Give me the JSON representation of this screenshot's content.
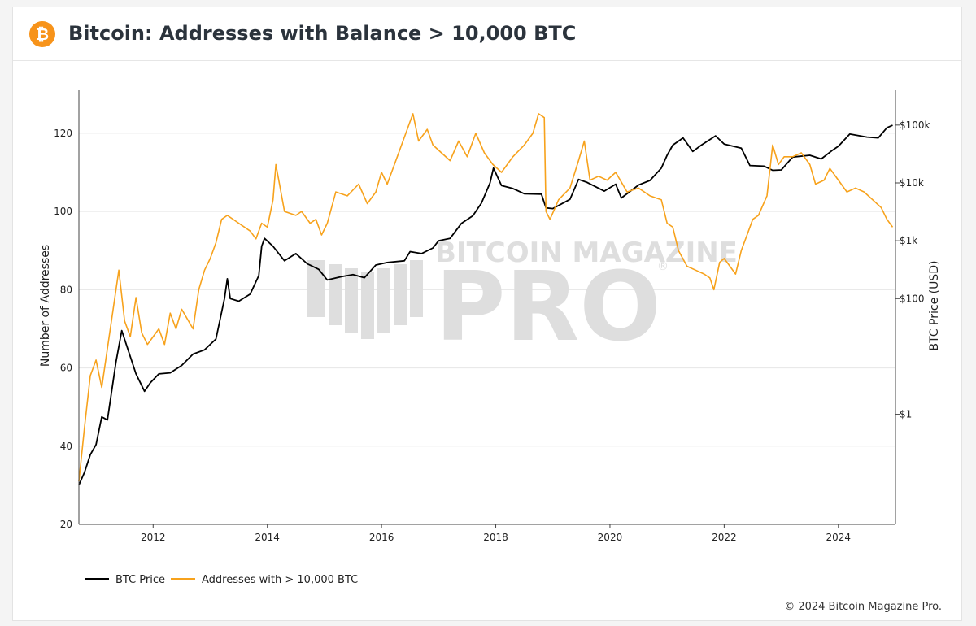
{
  "header": {
    "logo_glyph": "₿",
    "title": "Bitcoin: Addresses with Balance > 10,000 BTC"
  },
  "watermark": {
    "line1": "BITCOIN MAGAZINE",
    "line2": "PRO",
    "registered": "®"
  },
  "footer": {
    "copyright": "© 2024 Bitcoin Magazine Pro."
  },
  "colors": {
    "price": "#000000",
    "addresses": "#f7a21c",
    "brand": "#f7931a",
    "grid": "#e6e6e6"
  },
  "chart_data": {
    "type": "line",
    "title": "Bitcoin: Addresses with Balance > 10,000 BTC",
    "xlabel": "",
    "ylabel_left": "Number of Addresses",
    "ylabel_right": "BTC Price (USD)",
    "x_range": [
      2010.7,
      2025.0
    ],
    "y_left_range": [
      20,
      131
    ],
    "y_right_scale": "log",
    "y_right_range_usd": [
      0.0125,
      400000
    ],
    "x_ticks": [
      "2012",
      "2014",
      "2016",
      "2018",
      "2020",
      "2022",
      "2024"
    ],
    "y_left_ticks": [
      20,
      40,
      60,
      80,
      100,
      120
    ],
    "y_right_ticks": [
      {
        "label": "$1",
        "value": 1
      },
      {
        "label": "$100",
        "value": 100
      },
      {
        "label": "$1k",
        "value": 1000
      },
      {
        "label": "$10k",
        "value": 10000
      },
      {
        "label": "$100k",
        "value": 100000
      }
    ],
    "grid": true,
    "legend_position": "bottom-left",
    "series": [
      {
        "name": "BTC Price",
        "axis": "right",
        "color": "#000000",
        "points": [
          [
            2010.7,
            0.06
          ],
          [
            2010.8,
            0.1
          ],
          [
            2010.9,
            0.2
          ],
          [
            2011.0,
            0.3
          ],
          [
            2011.1,
            0.9
          ],
          [
            2011.2,
            0.8
          ],
          [
            2011.35,
            8
          ],
          [
            2011.45,
            28
          ],
          [
            2011.55,
            14
          ],
          [
            2011.7,
            5
          ],
          [
            2011.85,
            2.5
          ],
          [
            2011.95,
            3.5
          ],
          [
            2012.1,
            5
          ],
          [
            2012.3,
            5.2
          ],
          [
            2012.5,
            7
          ],
          [
            2012.7,
            11
          ],
          [
            2012.9,
            13
          ],
          [
            2013.1,
            20
          ],
          [
            2013.25,
            100
          ],
          [
            2013.3,
            220
          ],
          [
            2013.35,
            100
          ],
          [
            2013.5,
            90
          ],
          [
            2013.7,
            120
          ],
          [
            2013.85,
            250
          ],
          [
            2013.9,
            800
          ],
          [
            2013.95,
            1100
          ],
          [
            2014.1,
            800
          ],
          [
            2014.3,
            450
          ],
          [
            2014.5,
            600
          ],
          [
            2014.7,
            400
          ],
          [
            2014.9,
            320
          ],
          [
            2015.05,
            210
          ],
          [
            2015.3,
            240
          ],
          [
            2015.5,
            260
          ],
          [
            2015.7,
            230
          ],
          [
            2015.9,
            380
          ],
          [
            2016.1,
            420
          ],
          [
            2016.4,
            450
          ],
          [
            2016.5,
            650
          ],
          [
            2016.7,
            600
          ],
          [
            2016.9,
            750
          ],
          [
            2017.0,
            1000
          ],
          [
            2017.2,
            1100
          ],
          [
            2017.4,
            2000
          ],
          [
            2017.6,
            2700
          ],
          [
            2017.75,
            4500
          ],
          [
            2017.9,
            10000
          ],
          [
            2017.96,
            18000
          ],
          [
            2018.1,
            9000
          ],
          [
            2018.3,
            8000
          ],
          [
            2018.5,
            6500
          ],
          [
            2018.8,
            6400
          ],
          [
            2018.88,
            3700
          ],
          [
            2019.0,
            3600
          ],
          [
            2019.3,
            5200
          ],
          [
            2019.45,
            11500
          ],
          [
            2019.6,
            10200
          ],
          [
            2019.9,
            7200
          ],
          [
            2020.1,
            9500
          ],
          [
            2020.2,
            5500
          ],
          [
            2020.5,
            9200
          ],
          [
            2020.7,
            11000
          ],
          [
            2020.9,
            18000
          ],
          [
            2021.0,
            30000
          ],
          [
            2021.1,
            45000
          ],
          [
            2021.28,
            60000
          ],
          [
            2021.45,
            35000
          ],
          [
            2021.6,
            45000
          ],
          [
            2021.85,
            65000
          ],
          [
            2022.0,
            47000
          ],
          [
            2022.3,
            40000
          ],
          [
            2022.45,
            20000
          ],
          [
            2022.7,
            19500
          ],
          [
            2022.85,
            16500
          ],
          [
            2023.0,
            16800
          ],
          [
            2023.2,
            28000
          ],
          [
            2023.5,
            30000
          ],
          [
            2023.7,
            26000
          ],
          [
            2023.9,
            37000
          ],
          [
            2024.0,
            43000
          ],
          [
            2024.2,
            70000
          ],
          [
            2024.5,
            62000
          ],
          [
            2024.7,
            60000
          ],
          [
            2024.85,
            90000
          ],
          [
            2024.95,
            99000
          ]
        ]
      },
      {
        "name": "Addresses with > 10,000 BTC",
        "axis": "left",
        "color": "#f7a21c",
        "points": [
          [
            2010.7,
            31
          ],
          [
            2010.8,
            45
          ],
          [
            2010.9,
            58
          ],
          [
            2011.0,
            62
          ],
          [
            2011.1,
            55
          ],
          [
            2011.2,
            65
          ],
          [
            2011.3,
            75
          ],
          [
            2011.4,
            85
          ],
          [
            2011.5,
            72
          ],
          [
            2011.6,
            68
          ],
          [
            2011.7,
            78
          ],
          [
            2011.8,
            69
          ],
          [
            2011.9,
            66
          ],
          [
            2012.0,
            68
          ],
          [
            2012.1,
            70
          ],
          [
            2012.2,
            66
          ],
          [
            2012.3,
            74
          ],
          [
            2012.4,
            70
          ],
          [
            2012.5,
            75
          ],
          [
            2012.7,
            70
          ],
          [
            2012.8,
            80
          ],
          [
            2012.9,
            85
          ],
          [
            2013.0,
            88
          ],
          [
            2013.1,
            92
          ],
          [
            2013.2,
            98
          ],
          [
            2013.3,
            99
          ],
          [
            2013.5,
            97
          ],
          [
            2013.7,
            95
          ],
          [
            2013.8,
            93
          ],
          [
            2013.9,
            97
          ],
          [
            2014.0,
            96
          ],
          [
            2014.1,
            103
          ],
          [
            2014.15,
            112
          ],
          [
            2014.3,
            100
          ],
          [
            2014.5,
            99
          ],
          [
            2014.6,
            100
          ],
          [
            2014.75,
            97
          ],
          [
            2014.85,
            98
          ],
          [
            2014.95,
            94
          ],
          [
            2015.05,
            97
          ],
          [
            2015.2,
            105
          ],
          [
            2015.4,
            104
          ],
          [
            2015.6,
            107
          ],
          [
            2015.75,
            102
          ],
          [
            2015.9,
            105
          ],
          [
            2016.0,
            110
          ],
          [
            2016.1,
            107
          ],
          [
            2016.3,
            115
          ],
          [
            2016.45,
            121
          ],
          [
            2016.55,
            125
          ],
          [
            2016.65,
            118
          ],
          [
            2016.8,
            121
          ],
          [
            2016.9,
            117
          ],
          [
            2017.05,
            115
          ],
          [
            2017.2,
            113
          ],
          [
            2017.35,
            118
          ],
          [
            2017.5,
            114
          ],
          [
            2017.65,
            120
          ],
          [
            2017.8,
            115
          ],
          [
            2017.95,
            112
          ],
          [
            2018.1,
            110
          ],
          [
            2018.3,
            114
          ],
          [
            2018.5,
            117
          ],
          [
            2018.65,
            120
          ],
          [
            2018.75,
            125
          ],
          [
            2018.85,
            124
          ],
          [
            2018.88,
            100
          ],
          [
            2018.95,
            98
          ],
          [
            2019.1,
            103
          ],
          [
            2019.3,
            106
          ],
          [
            2019.45,
            113
          ],
          [
            2019.55,
            118
          ],
          [
            2019.65,
            108
          ],
          [
            2019.8,
            109
          ],
          [
            2019.95,
            108
          ],
          [
            2020.1,
            110
          ],
          [
            2020.3,
            105
          ],
          [
            2020.5,
            106
          ],
          [
            2020.7,
            104
          ],
          [
            2020.9,
            103
          ],
          [
            2021.0,
            97
          ],
          [
            2021.1,
            96
          ],
          [
            2021.2,
            90
          ],
          [
            2021.35,
            86
          ],
          [
            2021.5,
            85
          ],
          [
            2021.65,
            84
          ],
          [
            2021.75,
            83
          ],
          [
            2021.82,
            80
          ],
          [
            2021.92,
            87
          ],
          [
            2022.0,
            88
          ],
          [
            2022.1,
            86
          ],
          [
            2022.2,
            84
          ],
          [
            2022.3,
            90
          ],
          [
            2022.4,
            94
          ],
          [
            2022.5,
            98
          ],
          [
            2022.6,
            99
          ],
          [
            2022.75,
            104
          ],
          [
            2022.85,
            117
          ],
          [
            2022.95,
            112
          ],
          [
            2023.05,
            114
          ],
          [
            2023.2,
            114
          ],
          [
            2023.35,
            115
          ],
          [
            2023.5,
            112
          ],
          [
            2023.6,
            107
          ],
          [
            2023.75,
            108
          ],
          [
            2023.85,
            111
          ],
          [
            2024.0,
            108
          ],
          [
            2024.15,
            105
          ],
          [
            2024.3,
            106
          ],
          [
            2024.45,
            105
          ],
          [
            2024.6,
            103
          ],
          [
            2024.75,
            101
          ],
          [
            2024.85,
            98
          ],
          [
            2024.95,
            96
          ]
        ]
      }
    ]
  }
}
